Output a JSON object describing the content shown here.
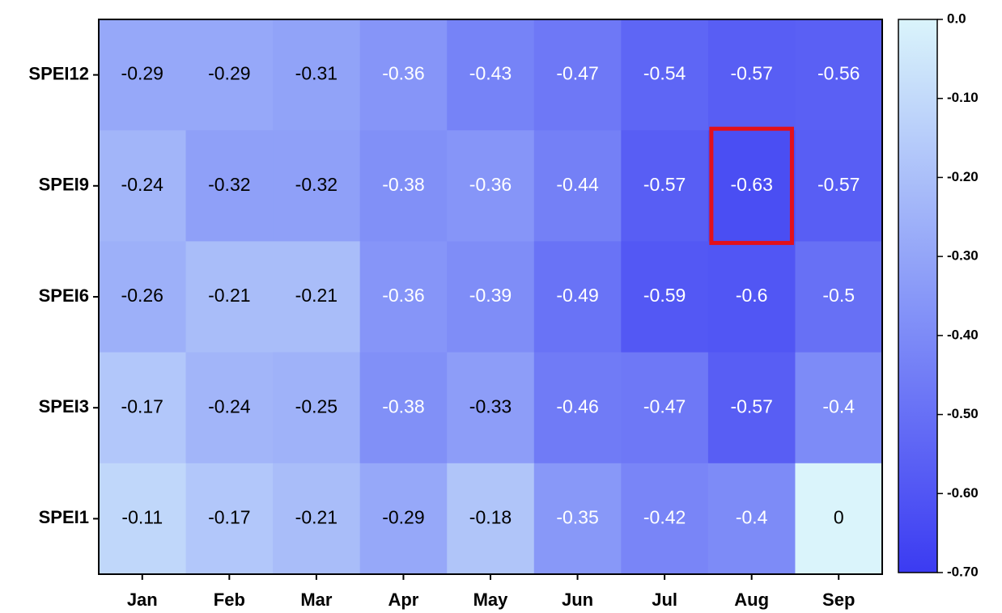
{
  "chart_data": {
    "type": "heatmap",
    "rows": [
      "SPEI12",
      "SPEI9",
      "SPEI6",
      "SPEI3",
      "SPEI1"
    ],
    "columns": [
      "Jan",
      "Feb",
      "Mar",
      "Apr",
      "May",
      "Jun",
      "Jul",
      "Aug",
      "Sep"
    ],
    "values": [
      [
        -0.29,
        -0.29,
        -0.31,
        -0.36,
        -0.43,
        -0.47,
        -0.54,
        -0.57,
        -0.56
      ],
      [
        -0.24,
        -0.32,
        -0.32,
        -0.38,
        -0.36,
        -0.44,
        -0.57,
        -0.63,
        -0.57
      ],
      [
        -0.26,
        -0.21,
        -0.21,
        -0.36,
        -0.39,
        -0.49,
        -0.59,
        -0.6,
        -0.5
      ],
      [
        -0.17,
        -0.24,
        -0.25,
        -0.38,
        -0.33,
        -0.46,
        -0.47,
        -0.57,
        -0.4
      ],
      [
        -0.11,
        -0.17,
        -0.21,
        -0.29,
        -0.18,
        -0.35,
        -0.42,
        -0.4,
        0
      ]
    ],
    "zlim": [
      0,
      -0.7
    ],
    "colors": [
      "#daf4fb",
      "#8898f8",
      "#3b3bf2"
    ],
    "zticks": [
      {
        "value": 0,
        "label": "0.0"
      },
      {
        "value": -0.1,
        "label": "-0.10"
      },
      {
        "value": -0.2,
        "label": "-0.20"
      },
      {
        "value": -0.3,
        "label": "-0.30"
      },
      {
        "value": -0.4,
        "label": "-0.40"
      },
      {
        "value": -0.5,
        "label": "-0.50"
      },
      {
        "value": -0.6,
        "label": "-0.60"
      },
      {
        "value": -0.7,
        "label": "-0.70"
      }
    ],
    "highlight": {
      "row": "SPEI9",
      "column": "Aug",
      "color": "#e3101a"
    }
  }
}
